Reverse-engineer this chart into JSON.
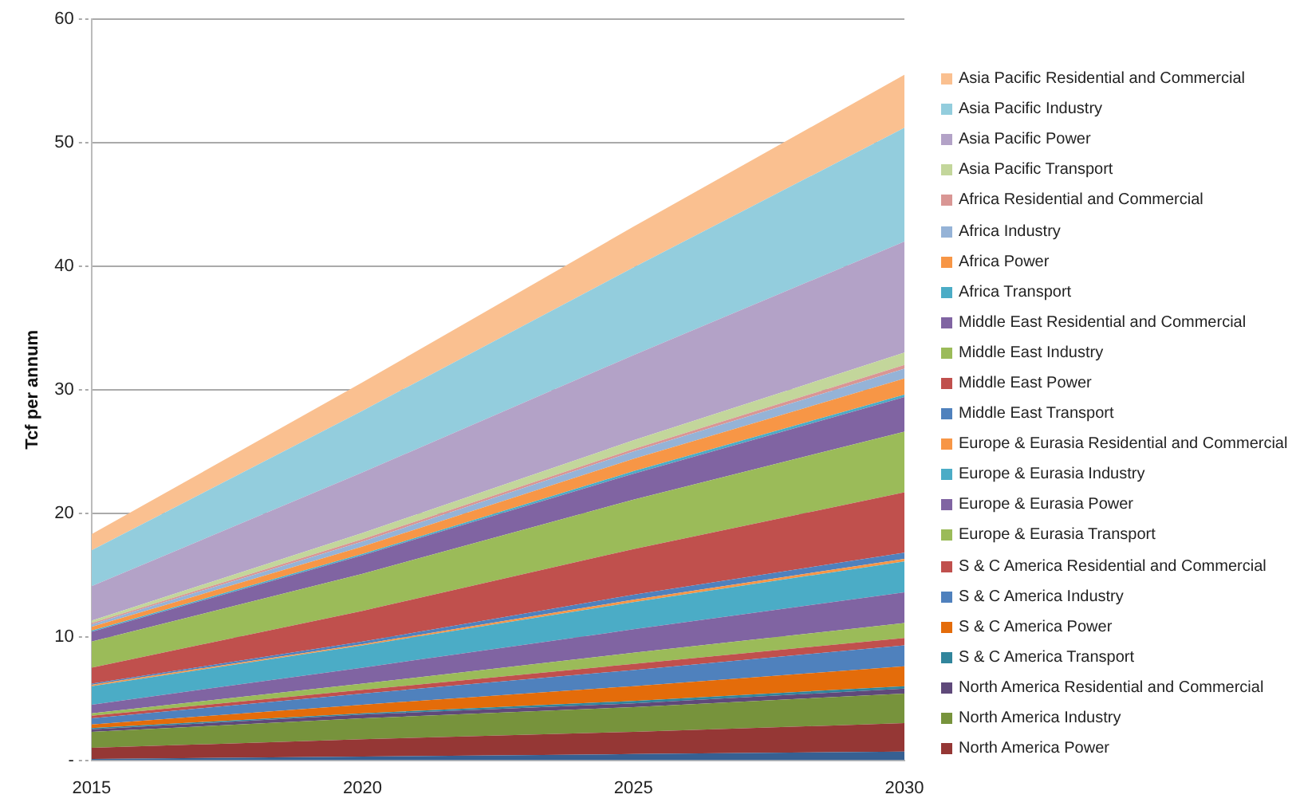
{
  "chart_data": {
    "type": "area",
    "stacked": true,
    "ylabel": "Tcf per annum",
    "categories": [
      "2015",
      "2020",
      "2025",
      "2030"
    ],
    "ylim": [
      0,
      60
    ],
    "yticks": [
      {
        "value": 0,
        "label": "-"
      },
      10,
      20,
      30,
      40,
      50,
      60
    ],
    "grid": "y",
    "legend": "right",
    "marker": "none",
    "series": [
      {
        "color": "#376092",
        "values": [
          0.1,
          0.3,
          0.5,
          0.7
        ]
      },
      {
        "name": "North America Power",
        "color": "#953735",
        "values": [
          0.9,
          1.4,
          1.8,
          2.3
        ]
      },
      {
        "name": "North America Industry",
        "color": "#77933c",
        "values": [
          1.3,
          1.7,
          2.0,
          2.4
        ]
      },
      {
        "name": "North America Residential and Commercial",
        "color": "#5f497a",
        "values": [
          0.2,
          0.3,
          0.3,
          0.4
        ]
      },
      {
        "name": "S & C America Transport",
        "color": "#31859c",
        "values": [
          0.1,
          0.1,
          0.2,
          0.2
        ]
      },
      {
        "name": "S & C America Power",
        "color": "#e46c0a",
        "values": [
          0.3,
          0.7,
          1.2,
          1.6
        ]
      },
      {
        "name": "S & C America Industry",
        "color": "#4f81bd",
        "values": [
          0.5,
          0.9,
          1.3,
          1.7
        ]
      },
      {
        "name": "S & C America Residential and Commercial",
        "color": "#c0504d",
        "values": [
          0.2,
          0.3,
          0.5,
          0.6
        ]
      },
      {
        "name": "Europe & Eurasia Transport",
        "color": "#9bbb59",
        "values": [
          0.2,
          0.5,
          0.9,
          1.2
        ]
      },
      {
        "name": "Europe & Eurasia Power",
        "color": "#8064a2",
        "values": [
          0.7,
          1.3,
          1.9,
          2.5
        ]
      },
      {
        "name": "Europe & Eurasia Industry",
        "color": "#4bacc6",
        "values": [
          1.5,
          1.8,
          2.2,
          2.5
        ]
      },
      {
        "name": "Europe & Eurasia Residential and Commercial",
        "color": "#f79646",
        "values": [
          0.1,
          0.1,
          0.2,
          0.2
        ]
      },
      {
        "name": "Middle East Transport",
        "color": "#4f81bd",
        "values": [
          0.1,
          0.2,
          0.4,
          0.5
        ]
      },
      {
        "name": "Middle East Power",
        "color": "#c0504d",
        "values": [
          1.3,
          2.5,
          3.7,
          4.9
        ]
      },
      {
        "name": "Middle East Industry",
        "color": "#9bbb59",
        "values": [
          2.1,
          3.0,
          4.0,
          4.9
        ]
      },
      {
        "name": "Middle East Residential and Commercial",
        "color": "#8064a2",
        "values": [
          0.8,
          1.5,
          2.1,
          2.8
        ]
      },
      {
        "name": "Africa Transport",
        "color": "#4bacc6",
        "values": [
          0.1,
          0.1,
          0.2,
          0.2
        ]
      },
      {
        "name": "Africa Power",
        "color": "#f79646",
        "values": [
          0.3,
          0.6,
          1.0,
          1.3
        ]
      },
      {
        "name": "Africa Industry",
        "color": "#95b3d7",
        "values": [
          0.2,
          0.4,
          0.6,
          0.8
        ]
      },
      {
        "name": "Africa Residential and Commercial",
        "color": "#d99694",
        "values": [
          0.1,
          0.2,
          0.2,
          0.3
        ]
      },
      {
        "name": "Asia Pacific Transport",
        "color": "#c3d69b",
        "values": [
          0.2,
          0.5,
          0.7,
          1.0
        ]
      },
      {
        "name": "Asia Pacific Power",
        "color": "#b3a2c7",
        "values": [
          2.8,
          4.9,
          6.9,
          9.0
        ]
      },
      {
        "name": "Asia Pacific Industry",
        "color": "#93cddd",
        "values": [
          2.9,
          5.0,
          7.1,
          9.2
        ]
      },
      {
        "name": "Asia Pacific Residential and Commercial",
        "color": "#fac090",
        "values": [
          1.3,
          2.3,
          3.3,
          4.3
        ]
      }
    ]
  }
}
